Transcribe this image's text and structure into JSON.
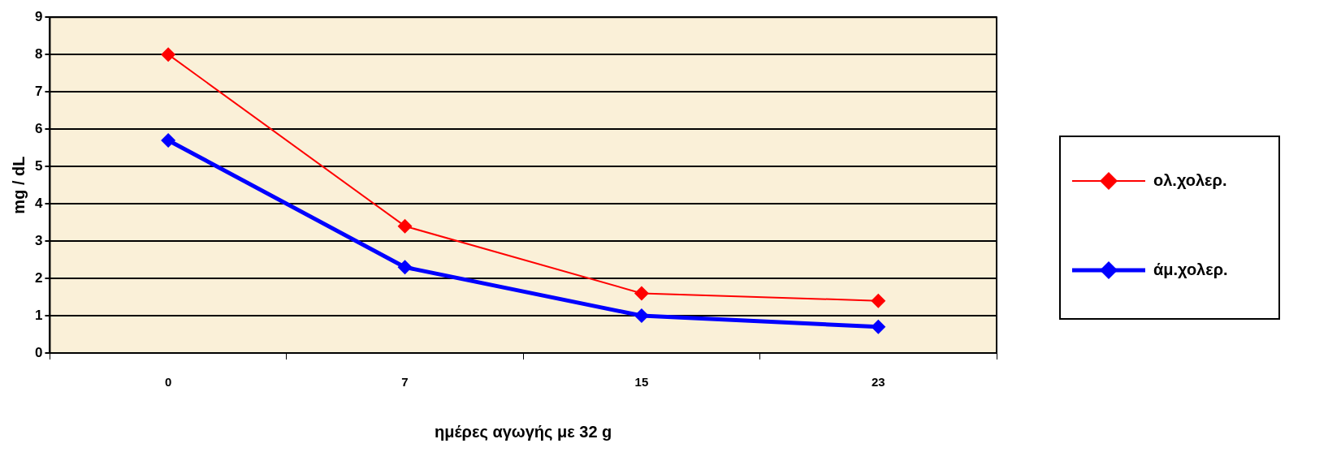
{
  "chart_data": {
    "type": "line",
    "xlabel": "ημέρες αγωγής με 32 g",
    "ylabel": "mg / dL",
    "categories": [
      "0",
      "7",
      "15",
      "23"
    ],
    "series": [
      {
        "name": "ολ.χολερ.",
        "color": "#ff0000",
        "values": [
          8,
          3.4,
          1.6,
          1.4
        ]
      },
      {
        "name": "άμ.χολερ.",
        "color": "#0000ff",
        "values": [
          5.7,
          2.3,
          1.0,
          0.7
        ]
      }
    ],
    "ylim": [
      0,
      9
    ],
    "yticks": [
      0,
      1,
      2,
      3,
      4,
      5,
      6,
      7,
      8,
      9
    ],
    "grid": "y",
    "legend": "right",
    "marker": "diamond",
    "line_style": "solid"
  }
}
